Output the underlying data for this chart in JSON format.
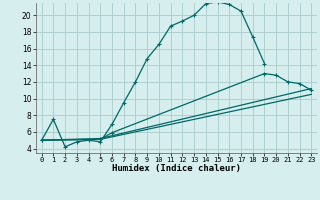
{
  "xlabel": "Humidex (Indice chaleur)",
  "bg_color": "#d6eeee",
  "grid_color": "#aacccc",
  "line_color": "#006868",
  "xlim": [
    -0.5,
    23.5
  ],
  "ylim": [
    3.5,
    21.5
  ],
  "xticks": [
    0,
    1,
    2,
    3,
    4,
    5,
    6,
    7,
    8,
    9,
    10,
    11,
    12,
    13,
    14,
    15,
    16,
    17,
    18,
    19,
    20,
    21,
    22,
    23
  ],
  "yticks": [
    4,
    6,
    8,
    10,
    12,
    14,
    16,
    18,
    20
  ],
  "curve1_x": [
    0,
    1,
    2,
    3,
    4,
    5,
    6,
    7,
    8,
    9,
    10,
    11,
    12,
    13,
    14,
    15,
    16,
    17,
    18,
    19
  ],
  "curve1_y": [
    5.0,
    7.5,
    4.2,
    4.8,
    5.0,
    4.8,
    6.9,
    9.5,
    12.0,
    14.8,
    16.5,
    18.7,
    19.3,
    20.0,
    21.4,
    21.6,
    21.3,
    20.5,
    17.4,
    14.2
  ],
  "curve2_x": [
    0,
    5,
    6,
    19,
    20,
    21,
    22,
    23
  ],
  "curve2_y": [
    5.0,
    5.1,
    5.9,
    13.0,
    12.8,
    12.0,
    11.8,
    11.0
  ],
  "curve3_x": [
    0,
    5,
    23
  ],
  "curve3_y": [
    5.0,
    5.2,
    11.2
  ],
  "curve4_x": [
    0,
    5,
    23
  ],
  "curve4_y": [
    5.0,
    5.1,
    10.5
  ]
}
